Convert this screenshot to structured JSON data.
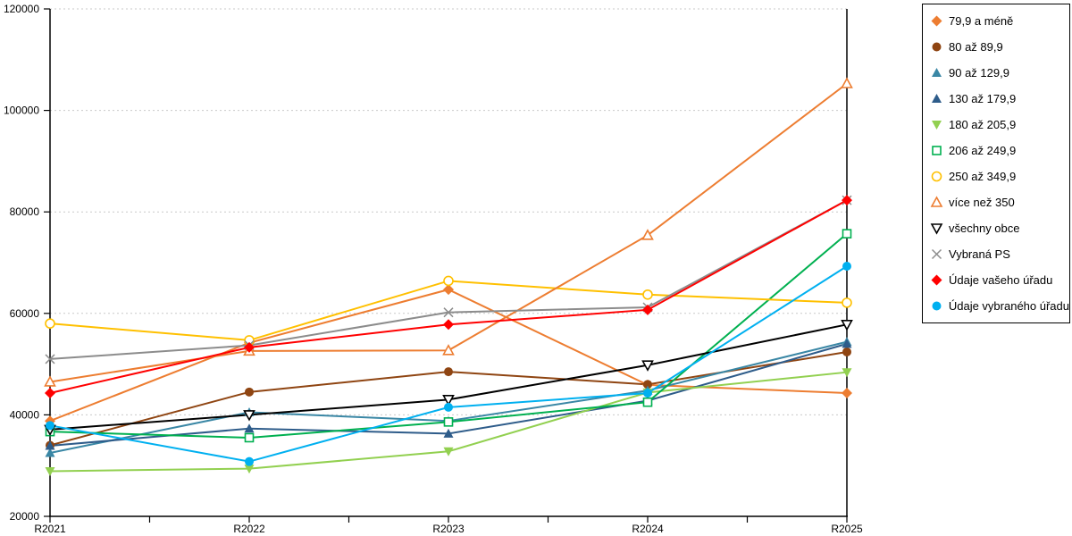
{
  "chart_data": {
    "type": "line",
    "title": "",
    "xlabel": "",
    "ylabel": "",
    "categories": [
      "R2021",
      "R2022",
      "R2023",
      "R2024",
      "R2025"
    ],
    "ylim": [
      20000,
      120000
    ],
    "ystep": 20000,
    "yticklabels": [
      "20000",
      "40000",
      "60000",
      "80000",
      "100000",
      "120000"
    ],
    "grid": "horizontal-dotted",
    "legend_position": "right",
    "series": [
      {
        "name": "79,9 a méně",
        "marker": "diamond",
        "fill": "filled",
        "color": "#ED7D31",
        "values": [
          38800,
          54200,
          64700,
          45900,
          44300
        ]
      },
      {
        "name": "80 až 89,9",
        "marker": "circle",
        "fill": "filled",
        "color": "#8F4512",
        "values": [
          34000,
          44500,
          48500,
          46000,
          52400
        ]
      },
      {
        "name": "90 až 129,9",
        "marker": "triangle",
        "fill": "filled",
        "color": "#3A87A5",
        "values": [
          32500,
          40500,
          38800,
          44800,
          54400
        ]
      },
      {
        "name": "130 až 179,9",
        "marker": "triangle",
        "fill": "filled",
        "color": "#2E5C8A",
        "values": [
          33900,
          37300,
          36300,
          42800,
          54000
        ]
      },
      {
        "name": "180 až 205,9",
        "marker": "triangle-down",
        "fill": "filled",
        "color": "#92D050",
        "values": [
          28900,
          29400,
          32800,
          44400,
          48400
        ]
      },
      {
        "name": "206 až 249,9",
        "marker": "square",
        "fill": "open",
        "color": "#00B050",
        "values": [
          36700,
          35500,
          38600,
          42500,
          75700
        ]
      },
      {
        "name": "250 až 349,9",
        "marker": "circle",
        "fill": "open",
        "color": "#FFC000",
        "values": [
          58000,
          54700,
          66400,
          63700,
          62100
        ]
      },
      {
        "name": "více než 350",
        "marker": "triangle",
        "fill": "open",
        "color": "#ED7D31",
        "values": [
          46500,
          52600,
          52700,
          75400,
          105300
        ]
      },
      {
        "name": "všechny obce",
        "marker": "triangle-down",
        "fill": "open",
        "color": "#000000",
        "values": [
          37100,
          40000,
          43000,
          49800,
          57800
        ]
      },
      {
        "name": "Vybraná PS",
        "marker": "x",
        "fill": "open",
        "color": "#8C8C8C",
        "values": [
          51000,
          53700,
          60200,
          61200,
          82300
        ]
      },
      {
        "name": "Údaje vašeho úřadu",
        "marker": "diamond",
        "fill": "filled",
        "color": "#FF0000",
        "values": [
          44300,
          53300,
          57800,
          60700,
          82300
        ]
      },
      {
        "name": "Údaje vybraného úřadu",
        "marker": "circle",
        "fill": "filled",
        "color": "#00B0F0",
        "values": [
          37900,
          30800,
          41500,
          44300,
          69300
        ]
      }
    ]
  },
  "colors": {
    "grid": "#C9C9C9",
    "axis": "#000000",
    "background": "#FFFFFF"
  }
}
